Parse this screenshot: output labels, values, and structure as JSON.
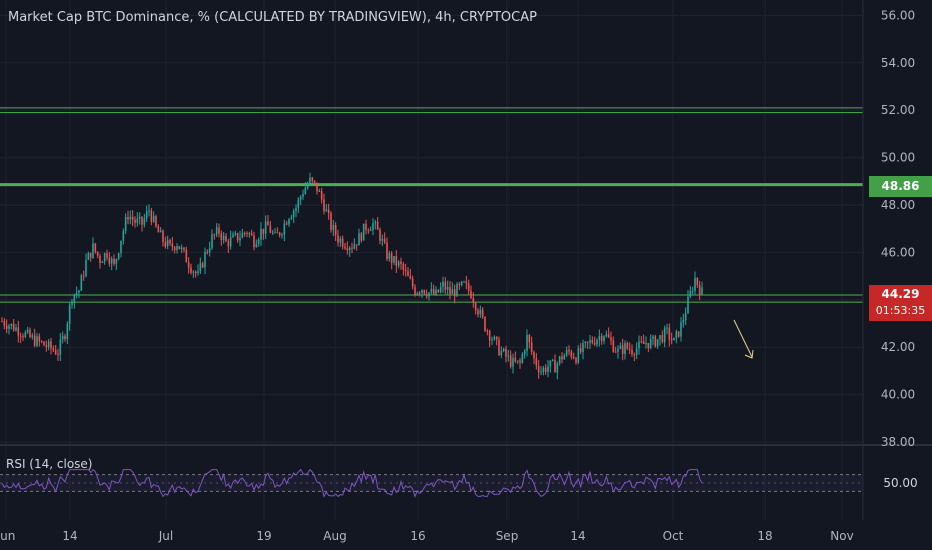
{
  "title": "Market Cap BTC Dominance, % (CALCULATED BY TRADINGVIEW), 4h, CRYPTOCAP",
  "price_axis": [
    "56.00",
    "54.00",
    "52.00",
    "50.00",
    "48.00",
    "46.00",
    "44.00",
    "42.00",
    "40.00",
    "38.00"
  ],
  "price_tags": {
    "high_line": "48.86",
    "last_price": "44.29",
    "countdown": "01:53:35"
  },
  "rsi": {
    "label": "RSI (14, close)",
    "axis_label": "50.00"
  },
  "time_axis": [
    "Jun",
    "14",
    "Jul",
    "19",
    "Aug",
    "16",
    "Sep",
    "14",
    "Oct",
    "18",
    "Nov"
  ],
  "colors": {
    "background": "#131722",
    "up": "#26a69a",
    "down": "#ef5350",
    "level_line": "#4caf50",
    "rsi_line": "#7e57c2",
    "arrow": "#e6d68a"
  },
  "chart_data": {
    "type": "candlestick",
    "title": "Market Cap BTC Dominance, % (CALCULATED BY TRADINGVIEW), 4h, CRYPTOCAP",
    "ylim": [
      38,
      57
    ],
    "x_ticks": [
      "Jun",
      "14",
      "Jul",
      "19",
      "Aug",
      "16",
      "Sep",
      "14",
      "Oct",
      "18",
      "Nov"
    ],
    "close_path": [
      [
        0,
        43.1
      ],
      [
        2,
        42.8
      ],
      [
        4,
        42.4
      ],
      [
        6,
        42.1
      ],
      [
        8,
        41.8
      ],
      [
        9,
        42.6
      ],
      [
        10,
        44.2
      ],
      [
        11,
        44.4
      ],
      [
        12,
        45.6
      ],
      [
        13,
        46.2
      ],
      [
        14,
        45.7
      ],
      [
        15,
        46.0
      ],
      [
        16,
        45.4
      ],
      [
        17,
        46.6
      ],
      [
        18,
        47.6
      ],
      [
        19,
        47.3
      ],
      [
        20,
        47.2
      ],
      [
        21,
        47.8
      ],
      [
        22,
        47.0
      ],
      [
        23,
        46.5
      ],
      [
        24,
        46.2
      ],
      [
        25,
        46.4
      ],
      [
        26,
        45.9
      ],
      [
        27,
        45.4
      ],
      [
        28,
        45.0
      ],
      [
        29,
        45.9
      ],
      [
        30,
        46.6
      ],
      [
        31,
        46.9
      ],
      [
        32,
        46.4
      ],
      [
        34,
        46.7
      ],
      [
        35,
        46.9
      ],
      [
        36,
        46.5
      ],
      [
        37,
        46.9
      ],
      [
        38,
        47.1
      ],
      [
        39,
        46.6
      ],
      [
        40,
        47.0
      ],
      [
        41,
        47.6
      ],
      [
        42,
        47.9
      ],
      [
        43,
        48.6
      ],
      [
        44,
        49.0
      ],
      [
        45,
        48.7
      ],
      [
        46,
        48.0
      ],
      [
        47,
        47.1
      ],
      [
        48,
        46.6
      ],
      [
        49,
        46.4
      ],
      [
        50,
        46.3
      ],
      [
        51,
        46.6
      ],
      [
        52,
        47.1
      ],
      [
        53,
        47.2
      ],
      [
        54,
        46.7
      ],
      [
        55,
        45.9
      ],
      [
        56,
        45.6
      ],
      [
        57,
        45.4
      ],
      [
        58,
        44.9
      ],
      [
        59,
        44.4
      ],
      [
        60,
        44.5
      ],
      [
        61,
        44.3
      ],
      [
        62,
        44.2
      ],
      [
        63,
        44.6
      ],
      [
        64,
        44.3
      ],
      [
        65,
        44.4
      ],
      [
        66,
        44.6
      ],
      [
        67,
        44.3
      ],
      [
        68,
        43.6
      ],
      [
        69,
        42.9
      ],
      [
        70,
        42.4
      ],
      [
        71,
        41.9
      ],
      [
        72,
        41.6
      ],
      [
        73,
        41.3
      ],
      [
        74,
        41.3
      ],
      [
        75,
        42.4
      ],
      [
        76,
        41.5
      ],
      [
        77,
        41.0
      ],
      [
        78,
        41.2
      ],
      [
        79,
        41.2
      ],
      [
        80,
        41.6
      ],
      [
        81,
        41.8
      ],
      [
        82,
        41.6
      ],
      [
        83,
        41.9
      ],
      [
        84,
        42.2
      ],
      [
        85,
        42.4
      ],
      [
        86,
        42.6
      ],
      [
        87,
        42.2
      ],
      [
        88,
        41.8
      ],
      [
        89,
        42.0
      ],
      [
        90,
        41.9
      ],
      [
        91,
        42.0
      ],
      [
        92,
        42.2
      ],
      [
        93,
        42.2
      ],
      [
        94,
        42.4
      ],
      [
        95,
        42.6
      ],
      [
        96,
        42.2
      ],
      [
        97,
        42.9
      ],
      [
        98,
        43.9
      ],
      [
        99,
        44.9
      ],
      [
        100,
        44.3
      ]
    ],
    "levels": [
      52.1,
      51.9,
      48.86,
      44.2,
      43.9
    ],
    "rsi": {
      "label": "RSI (14, close)",
      "overbought": 70,
      "oversold": 30,
      "midline": 50
    },
    "annotation": "arrow pointing down-right after last candle"
  }
}
